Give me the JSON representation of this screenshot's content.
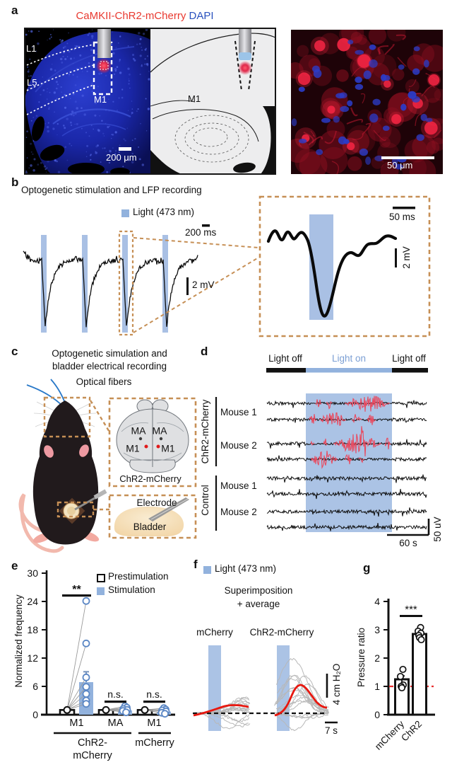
{
  "colors": {
    "light_blue_shade": "#abc3e5",
    "legend_blue": "#92b2dd",
    "light_on_text": "#7b9fd4",
    "burst_red": "#e84a5f",
    "average_red": "#e8170f",
    "reference_red": "#e83030",
    "dashed_orange": "#c68f55",
    "title_red": "#e8392f",
    "title_blue": "#2a52be"
  },
  "figure": {
    "panels": {
      "a": {
        "letter": "a",
        "title_red": "CaMKII-ChR2-mCherry",
        "title_blue": "DAPI",
        "l1": "L1",
        "l5": "L5",
        "m1_left": "M1",
        "m1_schematic": "M1",
        "scalebar_left": "200 μm",
        "scalebar_right": "50 μm"
      },
      "b": {
        "letter": "b",
        "title": "Optogenetic stimulation and LFP recording",
        "legend": "Light (473 nm)",
        "scale_time": "200 ms",
        "scale_amp": "2 mV",
        "inset_scale_time": "50 ms",
        "inset_scale_amp": "2 mV"
      },
      "c": {
        "letter": "c",
        "title_line1": "Optogenetic simulation and",
        "title_line2": "bladder electrical recording",
        "optical_fibers": "Optical fibers",
        "ma_left": "MA",
        "ma_right": "MA",
        "m1_left": "M1",
        "m1_right": "M1",
        "brain_caption": "ChR2-mCherry",
        "electrode": "Electrode",
        "bladder": "Bladder"
      },
      "d": {
        "letter": "d",
        "light_off_left": "Light off",
        "light_on": "Light on",
        "light_off_right": "Light off",
        "group_chr2": "ChR2-mCherry",
        "group_control": "Control",
        "mouse1_chr2": "Mouse 1",
        "mouse2_chr2": "Mouse 2",
        "mouse1_ctrl": "Mouse 1",
        "mouse2_ctrl": "Mouse 2",
        "scale_time": "60 s",
        "scale_amp": "50 uV"
      },
      "e": {
        "letter": "e",
        "legend_pre": "Prestimulation",
        "legend_stim": "Stimulation"
      },
      "f": {
        "letter": "f",
        "legend": "Light (473 nm)",
        "subtitle_line1": "Superimposition",
        "subtitle_line2": "+ average",
        "label_mcherry": "mCherry",
        "label_chr2": "ChR2-mCherry",
        "scale_amp": "4 cm H₂O",
        "scale_time": "7 s"
      },
      "g": {
        "letter": "g"
      }
    }
  },
  "chart_data": [
    {
      "id": "panel_e",
      "type": "bar",
      "title": "",
      "xlabel": "",
      "ylabel": "Normalized frequency",
      "ylim": [
        0,
        30
      ],
      "yticks": [
        0,
        6,
        12,
        18,
        24,
        30
      ],
      "grid": false,
      "legend_position": "top-right",
      "categories": [
        "M1",
        "MA",
        "M1"
      ],
      "series": [
        {
          "name": "Prestimulation",
          "values": [
            1.0,
            1.0,
            1.0
          ]
        },
        {
          "name": "Stimulation",
          "values": [
            6.9,
            0.9,
            0.65
          ],
          "errors": [
            2.2,
            0.4,
            0.3
          ]
        }
      ],
      "stimulation_points": [
        [
          24.1,
          15.1,
          7.9,
          5.9,
          4.4,
          3.0,
          2.3
        ],
        [
          1.8,
          1.5,
          1.2,
          1.0,
          0.8,
          0.5
        ],
        [
          1.4,
          1.1,
          0.9,
          0.7,
          0.4,
          0.2
        ]
      ],
      "significance": [
        "**",
        "n.s.",
        "n.s."
      ],
      "group_labels": [
        {
          "text": "ChR2-mCherry",
          "lines": [
            "ChR2-",
            "mCherry"
          ],
          "spans": [
            "M1",
            "MA"
          ]
        },
        {
          "text": "mCherry",
          "lines": [
            "mCherry"
          ],
          "spans": [
            "M1"
          ]
        }
      ]
    },
    {
      "id": "panel_g",
      "type": "bar",
      "title": "",
      "xlabel": "",
      "ylabel": "Pressure ratio",
      "ylim": [
        0,
        4
      ],
      "yticks": [
        0,
        1,
        2,
        3,
        4
      ],
      "grid": false,
      "categories": [
        "mCherry",
        "ChR2"
      ],
      "values": [
        1.25,
        2.85
      ],
      "errors": [
        0.12,
        0.1
      ],
      "points": [
        [
          1.6,
          1.35,
          1.05,
          1.0,
          0.95
        ],
        [
          3.08,
          2.95,
          2.88,
          2.8,
          2.72,
          2.65
        ]
      ],
      "significance": "***",
      "reference_line": 1.0
    }
  ]
}
